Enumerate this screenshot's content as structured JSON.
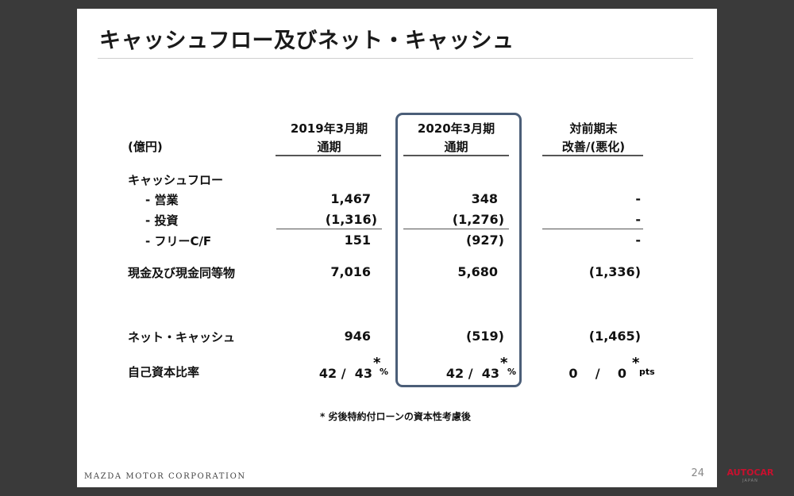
{
  "slide": {
    "title": "キャッシュフロー及びネット・キャッシュ",
    "unit_label": "(億円)",
    "columns": [
      {
        "line1": "2019年3月期",
        "line2": "通期"
      },
      {
        "line1": "2020年3月期",
        "line2": "通期"
      },
      {
        "line1": "対前期末",
        "line2": "改善/(悪化)"
      }
    ],
    "rows": {
      "cashflow_label": "キャッシュフロー",
      "operating": {
        "label": "- 営業",
        "values": [
          "1,467",
          "348",
          "-"
        ]
      },
      "investing": {
        "label": "- 投資",
        "values": [
          "(1,316)",
          "(1,276)",
          "-"
        ]
      },
      "free_cf": {
        "label": "- フリーC/F",
        "values": [
          "151",
          "(927)",
          "-"
        ]
      },
      "cash": {
        "label": "現金及び現金同等物",
        "values": [
          "7,016",
          "5,680",
          "(1,336)"
        ]
      },
      "net_cash": {
        "label": "ネット・キャッシュ",
        "values": [
          "946",
          "(519)",
          "(1,465)"
        ]
      },
      "equity_ratio": {
        "label": "自己資本比率",
        "values": [
          "42 /  43",
          "42 /  43",
          "0    /    0"
        ],
        "asterisk": "*",
        "units": [
          "%",
          "%",
          "pts"
        ]
      }
    },
    "footnote": "* 劣後特約付ローンの資本性考慮後",
    "company": "MAZDA MOTOR CORPORATION",
    "page_number": "24"
  },
  "watermark": {
    "brand": "AUTOCAR",
    "sub": "JAPAN"
  }
}
